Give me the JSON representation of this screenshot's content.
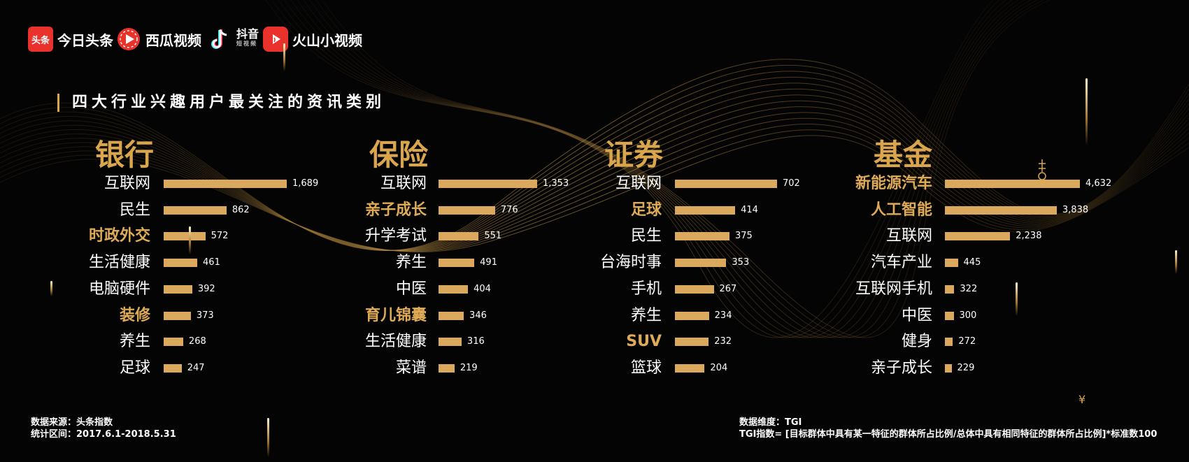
{
  "logos": [
    {
      "name": "今日头条",
      "icon_text": "头条",
      "color": "#e8322b"
    },
    {
      "name": "西瓜视频",
      "color": "#e8322b"
    },
    {
      "name": "抖音",
      "sub": "短视频",
      "color": "#ffffff"
    },
    {
      "name": "火山小视频",
      "color": "#e8322b"
    }
  ],
  "section_title": "四大行业兴趣用户最关注的资讯类别",
  "accent_color": "#d9a64e",
  "chart_data": [
    {
      "type": "bar",
      "title": "银行",
      "categories": [
        "互联网",
        "民生",
        "时政外交",
        "生活健康",
        "电脑硬件",
        "装修",
        "养生",
        "足球"
      ],
      "values": [
        1689,
        862,
        572,
        461,
        392,
        373,
        268,
        247
      ],
      "value_labels": [
        "1,689",
        "862",
        "572",
        "461",
        "392",
        "373",
        "268",
        "247"
      ],
      "highlighted": [
        "时政外交",
        "装修"
      ],
      "xlim": [
        0,
        1689
      ]
    },
    {
      "type": "bar",
      "title": "保险",
      "categories": [
        "互联网",
        "亲子成长",
        "升学考试",
        "养生",
        "中医",
        "育儿锦囊",
        "生活健康",
        "菜谱"
      ],
      "values": [
        1353,
        776,
        551,
        491,
        404,
        346,
        316,
        219
      ],
      "value_labels": [
        "1,353",
        "776",
        "551",
        "491",
        "404",
        "346",
        "316",
        "219"
      ],
      "highlighted": [
        "亲子成长",
        "育儿锦囊"
      ],
      "xlim": [
        0,
        1353
      ]
    },
    {
      "type": "bar",
      "title": "证券",
      "categories": [
        "互联网",
        "足球",
        "民生",
        "台海时事",
        "手机",
        "养生",
        "SUV",
        "篮球"
      ],
      "values": [
        702,
        414,
        375,
        353,
        267,
        234,
        232,
        204
      ],
      "value_labels": [
        "702",
        "414",
        "375",
        "353",
        "267",
        "234",
        "232",
        "204"
      ],
      "highlighted": [
        "足球",
        "SUV"
      ],
      "xlim": [
        0,
        702
      ]
    },
    {
      "type": "bar",
      "title": "基金",
      "categories": [
        "新能源汽车",
        "人工智能",
        "互联网",
        "汽车产业",
        "互联网手机",
        "中医",
        "健身",
        "亲子成长"
      ],
      "values": [
        4632,
        3838,
        2238,
        445,
        322,
        300,
        272,
        229
      ],
      "value_labels": [
        "4,632",
        "3,838",
        "2,238",
        "445",
        "322",
        "300",
        "272",
        "229"
      ],
      "highlighted": [
        "新能源汽车",
        "人工智能"
      ],
      "xlim": [
        0,
        4632
      ]
    }
  ],
  "footer_left": [
    "数据来源：头条指数",
    "统计区间：2017.6.1-2018.5.31"
  ],
  "footer_right": [
    "数据维度：TGI",
    "TGI指数= [目标群体中具有某一特征的群体所占比例/总体中具有相同特征的群体所占比例]*标准数100"
  ],
  "decor_symbol": "¥"
}
